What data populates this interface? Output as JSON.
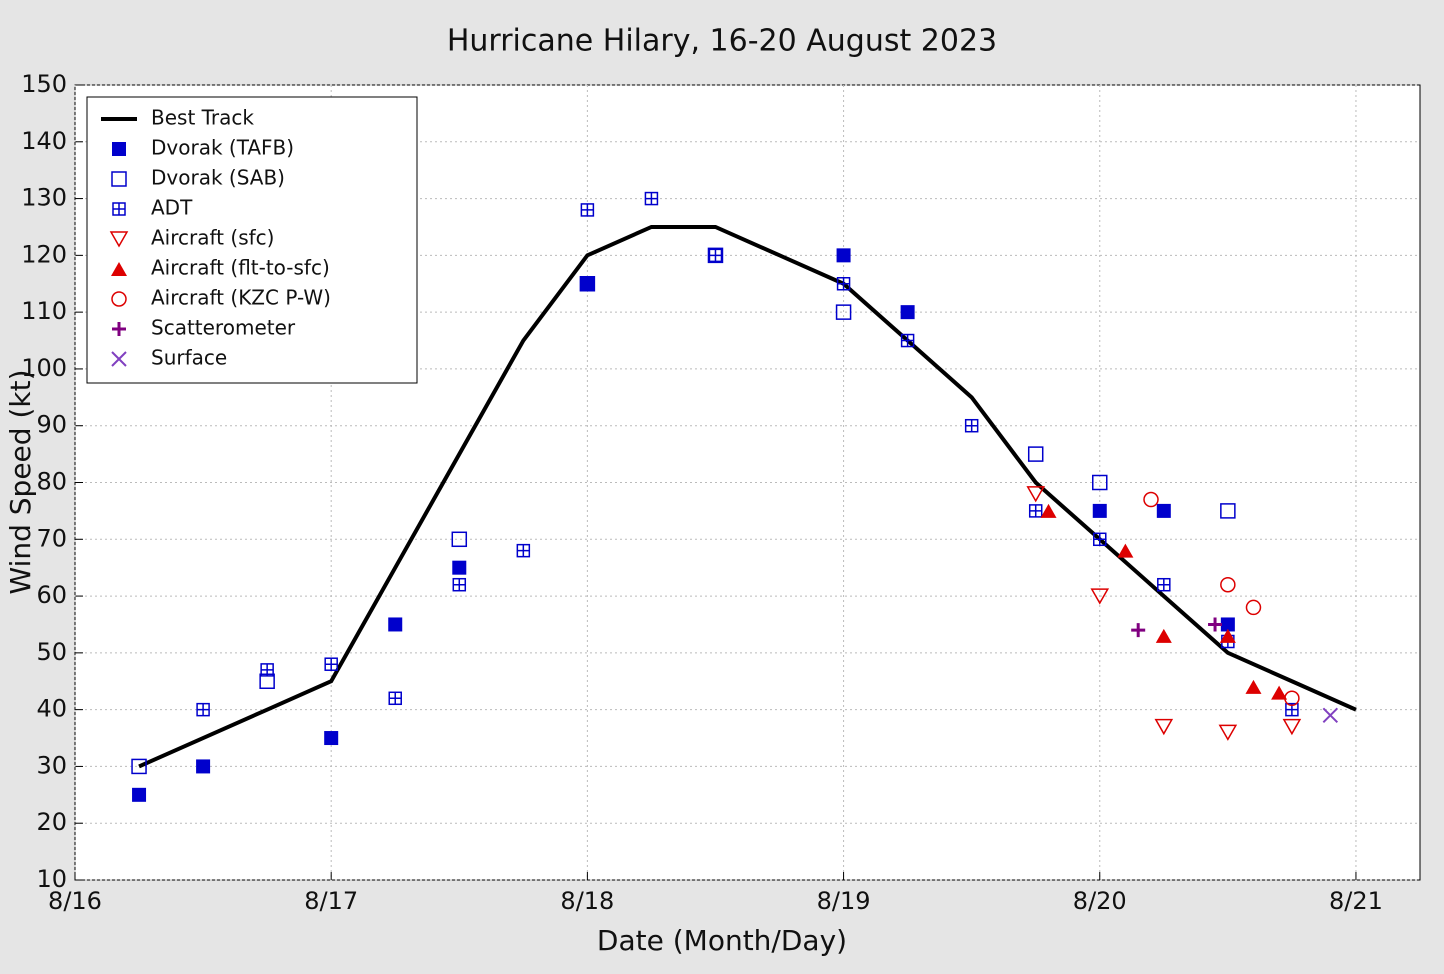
{
  "chart_data": {
    "type": "line",
    "title": "Hurricane Hilary, 16-20 August 2023",
    "x_label": "Date (Month/Day)",
    "y_label": "Wind Speed (kt)",
    "xlim": [
      16.0,
      21.25
    ],
    "xticks": [
      {
        "value": 16,
        "label": "8/16"
      },
      {
        "value": 17,
        "label": "8/17"
      },
      {
        "value": 18,
        "label": "8/18"
      },
      {
        "value": 19,
        "label": "8/19"
      },
      {
        "value": 20,
        "label": "8/20"
      },
      {
        "value": 21,
        "label": "8/21"
      }
    ],
    "ylim": [
      10,
      150
    ],
    "yticks": [
      10,
      20,
      30,
      40,
      50,
      60,
      70,
      80,
      90,
      100,
      110,
      120,
      130,
      140,
      150
    ],
    "grid": true,
    "legend": "upper left",
    "series": [
      {
        "name": "Best Track",
        "color": "#000000",
        "marker": "line",
        "x": [
          16.25,
          16.5,
          16.75,
          17.0,
          17.25,
          17.5,
          17.75,
          18.0,
          18.25,
          18.5,
          18.75,
          19.0,
          19.25,
          19.5,
          19.75,
          20.0,
          20.25,
          20.5,
          20.75,
          21.0
        ],
        "values": [
          30,
          35,
          40,
          45,
          65,
          85,
          105,
          120,
          125,
          125,
          120,
          115,
          105,
          95,
          80,
          70,
          60,
          50,
          45,
          40
        ]
      },
      {
        "name": "Dvorak (TAFB)",
        "color": "#0000cc",
        "marker": "square",
        "x": [
          16.25,
          16.5,
          17.0,
          17.25,
          17.5,
          18.0,
          19.0,
          19.25,
          20.0,
          20.25,
          20.5
        ],
        "values": [
          25,
          30,
          35,
          55,
          65,
          115,
          120,
          110,
          75,
          75,
          55
        ]
      },
      {
        "name": "Dvorak (SAB)",
        "color": "#0000cc",
        "marker": "square-open",
        "x": [
          16.25,
          16.75,
          17.5,
          18.0,
          18.5,
          19.0,
          19.75,
          20.0,
          20.5
        ],
        "values": [
          30,
          45,
          70,
          115,
          120,
          110,
          85,
          80,
          75
        ]
      },
      {
        "name": "ADT",
        "color": "#0000cc",
        "marker": "square-cross",
        "x": [
          16.5,
          16.75,
          17.0,
          17.25,
          17.5,
          17.75,
          18.0,
          18.25,
          18.5,
          19.0,
          19.25,
          19.5,
          19.75,
          20.0,
          20.25,
          20.5,
          20.75
        ],
        "values": [
          40,
          47,
          48,
          42,
          62,
          68,
          128,
          130,
          120,
          115,
          105,
          90,
          75,
          70,
          62,
          52,
          40
        ]
      },
      {
        "name": "Aircraft (sfc)",
        "color": "#dd0000",
        "marker": "tri-down-open",
        "x": [
          19.75,
          20.0,
          20.25,
          20.5,
          20.75
        ],
        "values": [
          78,
          60,
          37,
          36,
          37
        ]
      },
      {
        "name": "Aircraft (flt-to-sfc)",
        "color": "#dd0000",
        "marker": "tri-up",
        "x": [
          19.8,
          20.1,
          20.25,
          20.5,
          20.6,
          20.7
        ],
        "values": [
          75,
          68,
          53,
          53,
          44,
          43
        ]
      },
      {
        "name": "Aircraft (KZC P-W)",
        "color": "#dd0000",
        "marker": "circle-open",
        "x": [
          20.2,
          20.5,
          20.6,
          20.75
        ],
        "values": [
          77,
          62,
          58,
          42
        ]
      },
      {
        "name": "Scatterometer",
        "color": "#800080",
        "marker": "plus",
        "x": [
          20.15,
          20.45
        ],
        "values": [
          54,
          55
        ]
      },
      {
        "name": "Surface",
        "color": "#8040c0",
        "marker": "x",
        "x": [
          20.9
        ],
        "values": [
          39
        ]
      }
    ]
  }
}
